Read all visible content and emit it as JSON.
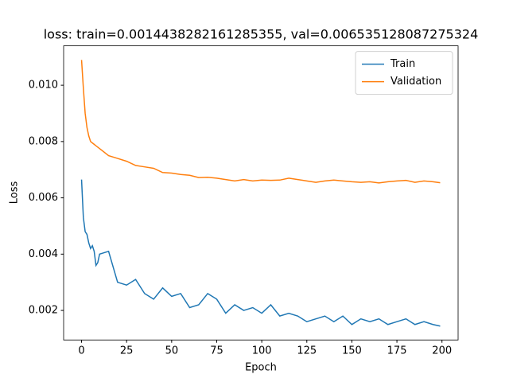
{
  "chart_data": {
    "type": "line",
    "title": "loss: train=0.0014438282161285355, val=0.006535128087275324",
    "x_label": "Epoch",
    "y_label": "Loss",
    "x": [
      0,
      1,
      2,
      3,
      4,
      5,
      6,
      7,
      8,
      9,
      10,
      15,
      20,
      25,
      30,
      35,
      40,
      45,
      50,
      55,
      60,
      65,
      70,
      75,
      80,
      85,
      90,
      95,
      100,
      105,
      110,
      115,
      120,
      125,
      130,
      135,
      140,
      145,
      150,
      155,
      160,
      165,
      170,
      175,
      180,
      185,
      190,
      195,
      199
    ],
    "series": [
      {
        "name": "Train",
        "color": "#1f77b4",
        "values": [
          0.00665,
          0.0053,
          0.0048,
          0.0047,
          0.0044,
          0.0042,
          0.0043,
          0.0041,
          0.0036,
          0.0037,
          0.004,
          0.0041,
          0.003,
          0.0029,
          0.0031,
          0.0026,
          0.0024,
          0.0028,
          0.0025,
          0.0026,
          0.0021,
          0.0022,
          0.0026,
          0.0024,
          0.0019,
          0.0022,
          0.002,
          0.0021,
          0.0019,
          0.0022,
          0.0018,
          0.0019,
          0.0018,
          0.0016,
          0.0017,
          0.0018,
          0.0016,
          0.0018,
          0.0015,
          0.0017,
          0.0016,
          0.0017,
          0.0015,
          0.0016,
          0.0017,
          0.0015,
          0.0016,
          0.0015,
          0.0014438282161285355
        ]
      },
      {
        "name": "Validation",
        "color": "#ff7f0e",
        "values": [
          0.0109,
          0.0099,
          0.009,
          0.0085,
          0.0082,
          0.008,
          0.00795,
          0.0079,
          0.00785,
          0.0078,
          0.00775,
          0.0075,
          0.0074,
          0.0073,
          0.00715,
          0.0071,
          0.00705,
          0.0069,
          0.00688,
          0.00683,
          0.0068,
          0.00672,
          0.00673,
          0.0067,
          0.00665,
          0.0066,
          0.00665,
          0.0066,
          0.00663,
          0.00662,
          0.00663,
          0.0067,
          0.00665,
          0.0066,
          0.00655,
          0.0066,
          0.00663,
          0.0066,
          0.00657,
          0.00655,
          0.00657,
          0.00653,
          0.00657,
          0.0066,
          0.00662,
          0.00655,
          0.0066,
          0.00657,
          0.006535128087275324
        ]
      }
    ],
    "xlim": [
      -9.95,
      208.95
    ],
    "xticks": [
      0,
      25,
      50,
      75,
      100,
      125,
      150,
      175,
      200
    ],
    "ylim": [
      0.00095,
      0.0114
    ],
    "yticks": [
      0.002,
      0.004,
      0.006,
      0.008,
      {
        "value": 0.01,
        "label": "0.010"
      }
    ],
    "legend": "upper right"
  }
}
